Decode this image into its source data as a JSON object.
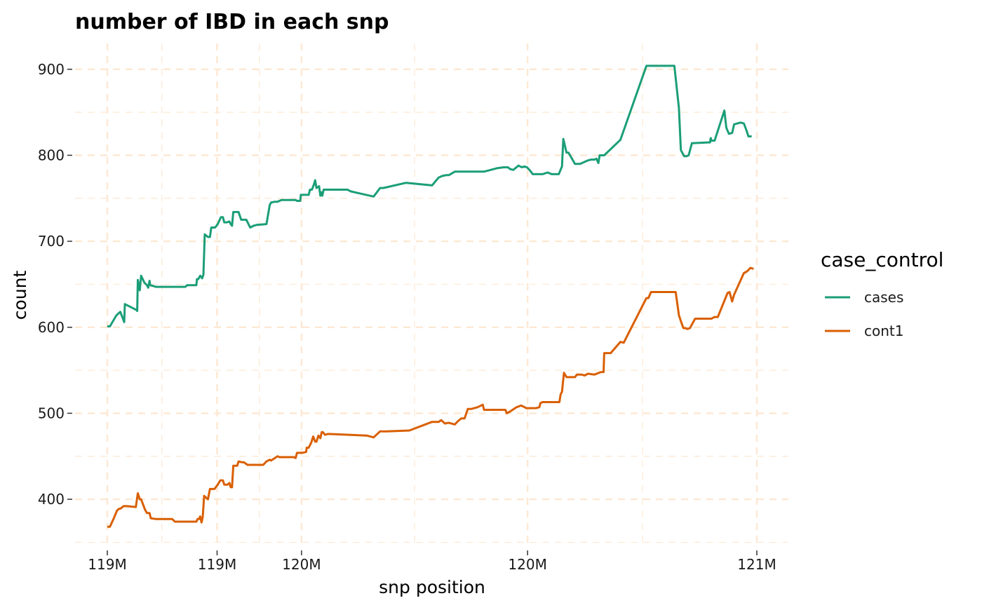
{
  "chart_data": {
    "type": "line",
    "title": "number of IBD in each snp",
    "xlabel": "snp position",
    "ylabel": "count",
    "x_tick_labels": [
      "119M",
      "119M",
      "120M",
      "120M",
      "121M"
    ],
    "y_ticks": [
      400,
      500,
      600,
      700,
      800,
      900
    ],
    "ylim": [
      343,
      930
    ],
    "grid": true,
    "legend": {
      "title": "case_control",
      "placement": "right"
    },
    "series": [
      {
        "name": "cases",
        "color": "#1b9e77",
        "points": [
          [
            0.0,
            601
          ],
          [
            0.004,
            601
          ],
          [
            0.014,
            614
          ],
          [
            0.02,
            618
          ],
          [
            0.025,
            608
          ],
          [
            0.026,
            606
          ],
          [
            0.027,
            627
          ],
          [
            0.045,
            620
          ],
          [
            0.046,
            619
          ],
          [
            0.047,
            655
          ],
          [
            0.05,
            643
          ],
          [
            0.052,
            660
          ],
          [
            0.057,
            652
          ],
          [
            0.061,
            649
          ],
          [
            0.063,
            646
          ],
          [
            0.065,
            654
          ],
          [
            0.066,
            649
          ],
          [
            0.075,
            647
          ],
          [
            0.08,
            647
          ],
          [
            0.1,
            647
          ],
          [
            0.12,
            647
          ],
          [
            0.123,
            649
          ],
          [
            0.13,
            649
          ],
          [
            0.137,
            649
          ],
          [
            0.138,
            656
          ],
          [
            0.14,
            656
          ],
          [
            0.143,
            660
          ],
          [
            0.146,
            657
          ],
          [
            0.148,
            661
          ],
          [
            0.15,
            708
          ],
          [
            0.155,
            705
          ],
          [
            0.158,
            705
          ],
          [
            0.16,
            716
          ],
          [
            0.166,
            716
          ],
          [
            0.17,
            720
          ],
          [
            0.175,
            728
          ],
          [
            0.178,
            728
          ],
          [
            0.18,
            722
          ],
          [
            0.184,
            722
          ],
          [
            0.188,
            723
          ],
          [
            0.19,
            720
          ],
          [
            0.192,
            718
          ],
          [
            0.194,
            734
          ],
          [
            0.202,
            734
          ],
          [
            0.206,
            725
          ],
          [
            0.21,
            725
          ],
          [
            0.214,
            725
          ],
          [
            0.22,
            716
          ],
          [
            0.225,
            718
          ],
          [
            0.23,
            719
          ],
          [
            0.245,
            720
          ],
          [
            0.25,
            742
          ],
          [
            0.252,
            745
          ],
          [
            0.258,
            746
          ],
          [
            0.262,
            746
          ],
          [
            0.268,
            748
          ],
          [
            0.28,
            748
          ],
          [
            0.29,
            748
          ],
          [
            0.292,
            747
          ],
          [
            0.297,
            747
          ],
          [
            0.298,
            754
          ],
          [
            0.305,
            754
          ],
          [
            0.307,
            754
          ],
          [
            0.31,
            754
          ],
          [
            0.312,
            760
          ],
          [
            0.315,
            760
          ],
          [
            0.318,
            766
          ],
          [
            0.32,
            771
          ],
          [
            0.322,
            762
          ],
          [
            0.326,
            764
          ],
          [
            0.328,
            753
          ],
          [
            0.33,
            757
          ],
          [
            0.331,
            753
          ],
          [
            0.333,
            760
          ],
          [
            0.34,
            760
          ],
          [
            0.37,
            760
          ],
          [
            0.372,
            759
          ],
          [
            0.375,
            758
          ],
          [
            0.41,
            752
          ],
          [
            0.42,
            762
          ],
          [
            0.425,
            762
          ],
          [
            0.46,
            768
          ],
          [
            0.5,
            765
          ],
          [
            0.51,
            774
          ],
          [
            0.516,
            776
          ],
          [
            0.522,
            777
          ],
          [
            0.526,
            777
          ],
          [
            0.535,
            781
          ],
          [
            0.55,
            781
          ],
          [
            0.575,
            781
          ],
          [
            0.58,
            781
          ],
          [
            0.6,
            785
          ],
          [
            0.61,
            786
          ],
          [
            0.617,
            786
          ],
          [
            0.62,
            784
          ],
          [
            0.625,
            783
          ],
          [
            0.633,
            788
          ],
          [
            0.638,
            786
          ],
          [
            0.642,
            787
          ],
          [
            0.646,
            786
          ],
          [
            0.65,
            783
          ],
          [
            0.655,
            778
          ],
          [
            0.66,
            778
          ],
          [
            0.67,
            778
          ],
          [
            0.678,
            780
          ],
          [
            0.684,
            778
          ],
          [
            0.69,
            778
          ],
          [
            0.695,
            778
          ],
          [
            0.7,
            787
          ],
          [
            0.702,
            819
          ],
          [
            0.707,
            803
          ],
          [
            0.71,
            803
          ],
          [
            0.72,
            790
          ],
          [
            0.725,
            790
          ],
          [
            0.728,
            790
          ],
          [
            0.74,
            794
          ],
          [
            0.745,
            795
          ],
          [
            0.75,
            795
          ],
          [
            0.753,
            796
          ],
          [
            0.756,
            791
          ],
          [
            0.758,
            800
          ],
          [
            0.762,
            800
          ],
          [
            0.765,
            800
          ],
          [
            0.79,
            818
          ],
          [
            0.83,
            904
          ],
          [
            0.87,
            904
          ],
          [
            0.873,
            904
          ],
          [
            0.88,
            855
          ],
          [
            0.883,
            806
          ],
          [
            0.888,
            799
          ],
          [
            0.892,
            799
          ],
          [
            0.895,
            800
          ],
          [
            0.9,
            814
          ],
          [
            0.925,
            815
          ],
          [
            0.928,
            815
          ],
          [
            0.929,
            820
          ],
          [
            0.93,
            817
          ],
          [
            0.935,
            817
          ],
          [
            0.95,
            852
          ],
          [
            0.953,
            832
          ],
          [
            0.957,
            825
          ],
          [
            0.962,
            826
          ],
          [
            0.965,
            836
          ],
          [
            0.975,
            838
          ],
          [
            0.98,
            837
          ],
          [
            0.984,
            829
          ],
          [
            0.987,
            822
          ],
          [
            0.992,
            822
          ]
        ]
      },
      {
        "name": "cont1",
        "color": "#d95f02",
        "points": [
          [
            0.0,
            368
          ],
          [
            0.004,
            368
          ],
          [
            0.01,
            378
          ],
          [
            0.015,
            387
          ],
          [
            0.018,
            389
          ],
          [
            0.02,
            389
          ],
          [
            0.025,
            392
          ],
          [
            0.03,
            392
          ],
          [
            0.044,
            391
          ],
          [
            0.045,
            397
          ],
          [
            0.047,
            407
          ],
          [
            0.05,
            400
          ],
          [
            0.052,
            400
          ],
          [
            0.058,
            388
          ],
          [
            0.061,
            384
          ],
          [
            0.065,
            384
          ],
          [
            0.067,
            378
          ],
          [
            0.075,
            377
          ],
          [
            0.1,
            377
          ],
          [
            0.104,
            374
          ],
          [
            0.11,
            374
          ],
          [
            0.13,
            374
          ],
          [
            0.137,
            374
          ],
          [
            0.139,
            377
          ],
          [
            0.141,
            377
          ],
          [
            0.143,
            380
          ],
          [
            0.145,
            373
          ],
          [
            0.146,
            376
          ],
          [
            0.147,
            380
          ],
          [
            0.149,
            404
          ],
          [
            0.155,
            400
          ],
          [
            0.158,
            412
          ],
          [
            0.165,
            412
          ],
          [
            0.17,
            417
          ],
          [
            0.174,
            422
          ],
          [
            0.178,
            422
          ],
          [
            0.18,
            417
          ],
          [
            0.185,
            417
          ],
          [
            0.188,
            419
          ],
          [
            0.19,
            414
          ],
          [
            0.192,
            414
          ],
          [
            0.194,
            439
          ],
          [
            0.2,
            439
          ],
          [
            0.202,
            444
          ],
          [
            0.207,
            443
          ],
          [
            0.21,
            443
          ],
          [
            0.216,
            440
          ],
          [
            0.23,
            440
          ],
          [
            0.24,
            440
          ],
          [
            0.245,
            444
          ],
          [
            0.25,
            446
          ],
          [
            0.252,
            445
          ],
          [
            0.258,
            448
          ],
          [
            0.262,
            450
          ],
          [
            0.265,
            449
          ],
          [
            0.28,
            449
          ],
          [
            0.287,
            449
          ],
          [
            0.29,
            448
          ],
          [
            0.292,
            454
          ],
          [
            0.3,
            454
          ],
          [
            0.306,
            455
          ],
          [
            0.307,
            460
          ],
          [
            0.31,
            460
          ],
          [
            0.314,
            466
          ],
          [
            0.317,
            473
          ],
          [
            0.32,
            467
          ],
          [
            0.322,
            467
          ],
          [
            0.325,
            474
          ],
          [
            0.328,
            471
          ],
          [
            0.33,
            478
          ],
          [
            0.332,
            478
          ],
          [
            0.335,
            475
          ],
          [
            0.34,
            476
          ],
          [
            0.4,
            474
          ],
          [
            0.41,
            472
          ],
          [
            0.42,
            479
          ],
          [
            0.43,
            479
          ],
          [
            0.465,
            480
          ],
          [
            0.5,
            490
          ],
          [
            0.51,
            490
          ],
          [
            0.514,
            492
          ],
          [
            0.52,
            488
          ],
          [
            0.525,
            489
          ],
          [
            0.53,
            488
          ],
          [
            0.535,
            487
          ],
          [
            0.54,
            491
          ],
          [
            0.545,
            494
          ],
          [
            0.55,
            494
          ],
          [
            0.555,
            505
          ],
          [
            0.56,
            505
          ],
          [
            0.57,
            507
          ],
          [
            0.578,
            510
          ],
          [
            0.58,
            504
          ],
          [
            0.59,
            504
          ],
          [
            0.613,
            504
          ],
          [
            0.615,
            500
          ],
          [
            0.62,
            502
          ],
          [
            0.63,
            507
          ],
          [
            0.637,
            509
          ],
          [
            0.64,
            508
          ],
          [
            0.645,
            506
          ],
          [
            0.66,
            506
          ],
          [
            0.665,
            507
          ],
          [
            0.667,
            512
          ],
          [
            0.67,
            513
          ],
          [
            0.695,
            513
          ],
          [
            0.696,
            513
          ],
          [
            0.698,
            522
          ],
          [
            0.7,
            525
          ],
          [
            0.703,
            547
          ],
          [
            0.707,
            542
          ],
          [
            0.72,
            542
          ],
          [
            0.723,
            545
          ],
          [
            0.73,
            545
          ],
          [
            0.735,
            544
          ],
          [
            0.74,
            546
          ],
          [
            0.75,
            545
          ],
          [
            0.76,
            548
          ],
          [
            0.764,
            548
          ],
          [
            0.765,
            570
          ],
          [
            0.77,
            570
          ],
          [
            0.775,
            570
          ],
          [
            0.79,
            583
          ],
          [
            0.795,
            582
          ],
          [
            0.83,
            634
          ],
          [
            0.833,
            634
          ],
          [
            0.837,
            641
          ],
          [
            0.875,
            641
          ],
          [
            0.88,
            614
          ],
          [
            0.885,
            603
          ],
          [
            0.887,
            599
          ],
          [
            0.89,
            599
          ],
          [
            0.893,
            598
          ],
          [
            0.897,
            599
          ],
          [
            0.905,
            610
          ],
          [
            0.91,
            610
          ],
          [
            0.93,
            610
          ],
          [
            0.935,
            612
          ],
          [
            0.94,
            612
          ],
          [
            0.955,
            640
          ],
          [
            0.958,
            641
          ],
          [
            0.962,
            630
          ],
          [
            0.965,
            638
          ],
          [
            0.98,
            663
          ],
          [
            0.985,
            665
          ],
          [
            0.99,
            669
          ],
          [
            0.995,
            668
          ]
        ]
      }
    ]
  }
}
